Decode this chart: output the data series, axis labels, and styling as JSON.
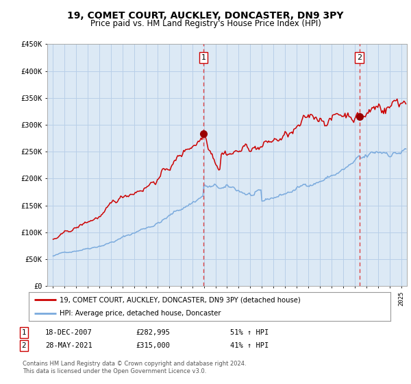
{
  "title": "19, COMET COURT, AUCKLEY, DONCASTER, DN9 3PY",
  "subtitle": "Price paid vs. HM Land Registry's House Price Index (HPI)",
  "legend_line1": "19, COMET COURT, AUCKLEY, DONCASTER, DN9 3PY (detached house)",
  "legend_line2": "HPI: Average price, detached house, Doncaster",
  "annotation1_label": "1",
  "annotation1_date": "18-DEC-2007",
  "annotation1_price": "£282,995",
  "annotation1_hpi": "51% ↑ HPI",
  "annotation2_label": "2",
  "annotation2_date": "28-MAY-2021",
  "annotation2_price": "£315,000",
  "annotation2_hpi": "41% ↑ HPI",
  "footer": "Contains HM Land Registry data © Crown copyright and database right 2024.\nThis data is licensed under the Open Government Licence v3.0.",
  "vline1_x": 2007.96,
  "vline2_x": 2021.41,
  "sale1_y": 282995,
  "sale2_y": 315000,
  "ylim": [
    0,
    450000
  ],
  "xlim": [
    1994.5,
    2025.5
  ],
  "bg_color": "#dce9f5",
  "grid_color": "#b8cfe8",
  "red_line_color": "#cc0000",
  "blue_line_color": "#7aaadd",
  "vline_color": "#dd4444",
  "dot_color": "#990000"
}
